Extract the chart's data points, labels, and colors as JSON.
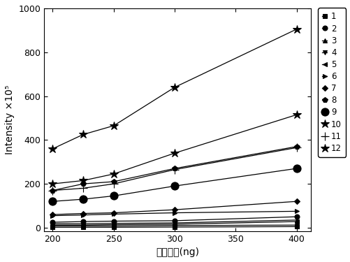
{
  "x": [
    200,
    225,
    250,
    300,
    400
  ],
  "series": {
    "1": [
      2,
      2,
      2,
      3,
      5
    ],
    "2": [
      25,
      28,
      30,
      32,
      50
    ],
    "3": [
      18,
      18,
      20,
      22,
      35
    ],
    "4": [
      8,
      8,
      8,
      10,
      12
    ],
    "5": [
      12,
      12,
      14,
      16,
      28
    ],
    "6": [
      55,
      58,
      62,
      68,
      75
    ],
    "7": [
      60,
      65,
      68,
      82,
      120
    ],
    "8": [
      170,
      200,
      210,
      270,
      370
    ],
    "9": [
      120,
      130,
      145,
      190,
      270
    ],
    "10": [
      200,
      215,
      245,
      340,
      515
    ],
    "11": [
      170,
      180,
      200,
      265,
      365
    ],
    "12": [
      360,
      425,
      465,
      640,
      905
    ]
  },
  "special_markers": {
    "1": [
      "s",
      5
    ],
    "2": [
      "o",
      5
    ],
    "3": [
      "^",
      5
    ],
    "4": [
      "v",
      5
    ],
    "5": [
      "<",
      5
    ],
    "6": [
      ">",
      5
    ],
    "7": [
      "D",
      4
    ],
    "8": [
      "p",
      6
    ],
    "9": [
      "o",
      8
    ],
    "10": [
      "*",
      9
    ],
    "11": [
      "+",
      8
    ],
    "12": [
      "*",
      9
    ]
  },
  "markerfacecolors": [
    "black",
    "black",
    "black",
    "black",
    "black",
    "black",
    "black",
    "black",
    "black",
    "black",
    "none",
    "black"
  ],
  "ylabel": "Intensity ×10⁵",
  "xlabel": "二糖质量(ng)",
  "xlim": [
    193,
    412
  ],
  "ylim": [
    -15,
    1000
  ],
  "xticks": [
    200,
    250,
    300,
    350,
    400
  ],
  "yticks": [
    0,
    200,
    400,
    600,
    800,
    1000
  ],
  "legend_labels": [
    "1",
    "2",
    "3",
    "4",
    "5",
    "6",
    "7",
    "8",
    "9",
    "10",
    "11",
    "12"
  ],
  "figsize": [
    5.02,
    3.75
  ],
  "dpi": 100
}
